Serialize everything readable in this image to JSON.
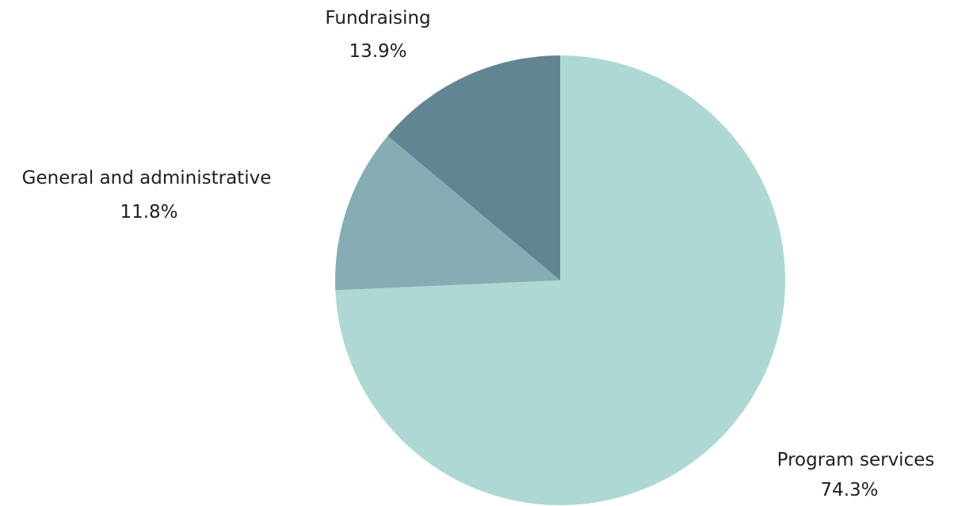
{
  "chart_data": {
    "type": "pie",
    "title": "",
    "start": "12 o'clock, clockwise",
    "slices": [
      {
        "label": "Program services",
        "value": 74.3,
        "display": "74.3%",
        "color": "#aed8d3"
      },
      {
        "label": "General and administrative",
        "value": 11.8,
        "display": "11.8%",
        "color": "#86adb3"
      },
      {
        "label": "Fundraising",
        "value": 13.9,
        "display": "13.9%",
        "color": "#628593"
      }
    ]
  }
}
